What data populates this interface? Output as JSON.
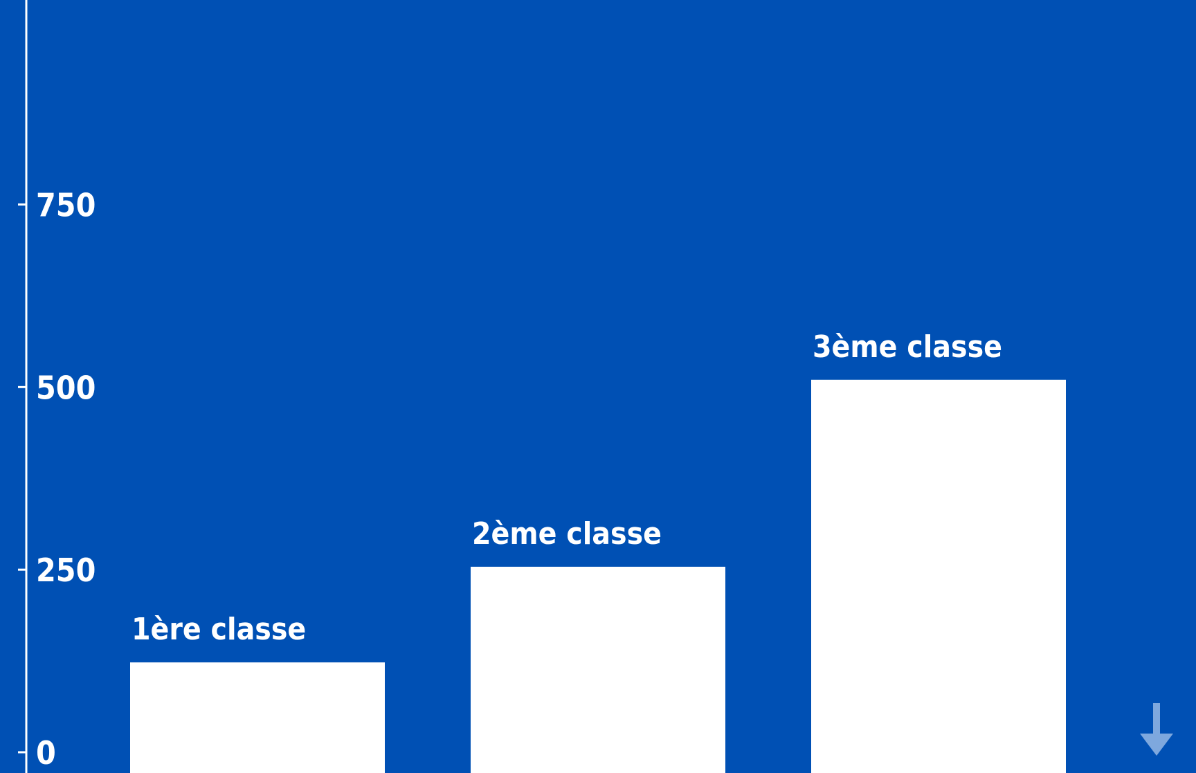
{
  "colors": {
    "background": "#0050b4",
    "bar": "#ffffff",
    "axis": "#ffffff",
    "arrow": "#7ea8de"
  },
  "scroll_hint": {
    "icon": "arrow-down-icon"
  },
  "chart_data": {
    "type": "bar",
    "categories": [
      "1ère classe",
      "2ème classe",
      "3ème classe"
    ],
    "values": [
      123,
      254,
      510
    ],
    "title": "",
    "xlabel": "",
    "ylabel": "",
    "ylim": [
      0,
      1030
    ],
    "yticks": [
      0,
      250,
      500,
      750
    ],
    "ytick_labels": [
      "0",
      "250",
      "500",
      "750"
    ],
    "grid": false,
    "legend": "none",
    "category_labels_position": "above-bar"
  }
}
